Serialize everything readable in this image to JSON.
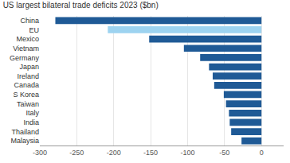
{
  "chart_data": {
    "type": "bar",
    "orientation": "horizontal",
    "title": "US largest bilateral trade deficits 2023 ($bn)",
    "categories": [
      "China",
      "EU",
      "Mexico",
      "Vietnam",
      "Germany",
      "Japan",
      "Ireland",
      "Canada",
      "S Korea",
      "Taiwan",
      "Italy",
      "India",
      "Thailand",
      "Malaysia"
    ],
    "values": [
      -279,
      -208,
      -152,
      -105,
      -83,
      -71,
      -66,
      -64,
      -51,
      -48,
      -44,
      -43,
      -41,
      -27
    ],
    "colors": [
      "#1f5a96",
      "#9dd3f0",
      "#1f5a96",
      "#1f5a96",
      "#1f5a96",
      "#1f5a96",
      "#1f5a96",
      "#1f5a96",
      "#1f5a96",
      "#1f5a96",
      "#1f5a96",
      "#1f5a96",
      "#1f5a96",
      "#1f5a96"
    ],
    "xlim": [
      -300,
      30
    ],
    "xticks": [
      -300,
      -250,
      -200,
      -150,
      -100,
      -50,
      0
    ],
    "grid": true
  }
}
